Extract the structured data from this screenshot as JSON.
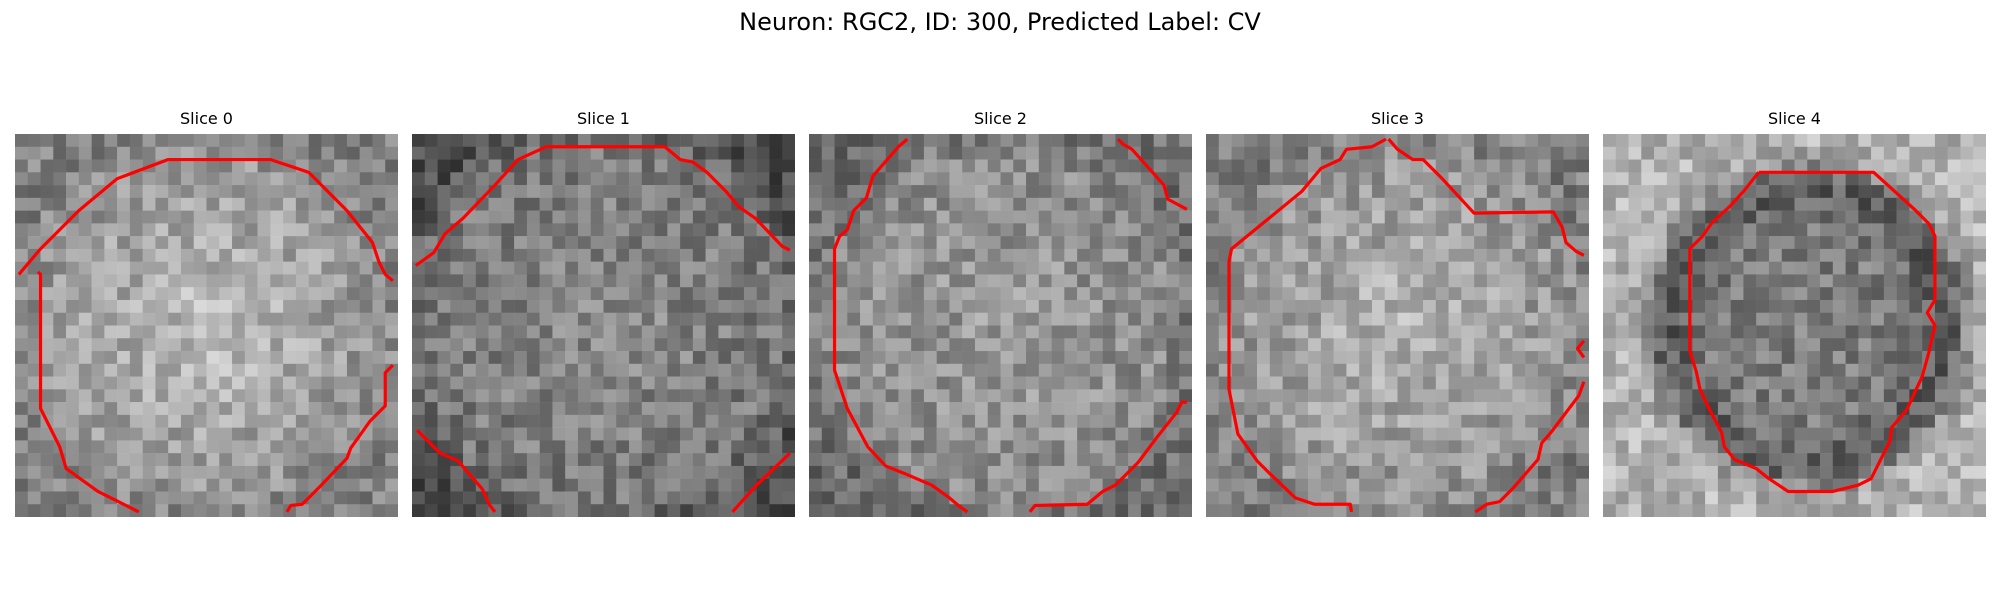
{
  "figure": {
    "title": "Neuron: RGC2, ID: 300, Predicted Label: CV"
  },
  "panels": [
    {
      "title": "Slice 0"
    },
    {
      "title": "Slice 1"
    },
    {
      "title": "Slice 2"
    },
    {
      "title": "Slice 3"
    },
    {
      "title": "Slice 4"
    }
  ],
  "colors": {
    "contour": "#ff0000",
    "background": "#ffffff"
  }
}
